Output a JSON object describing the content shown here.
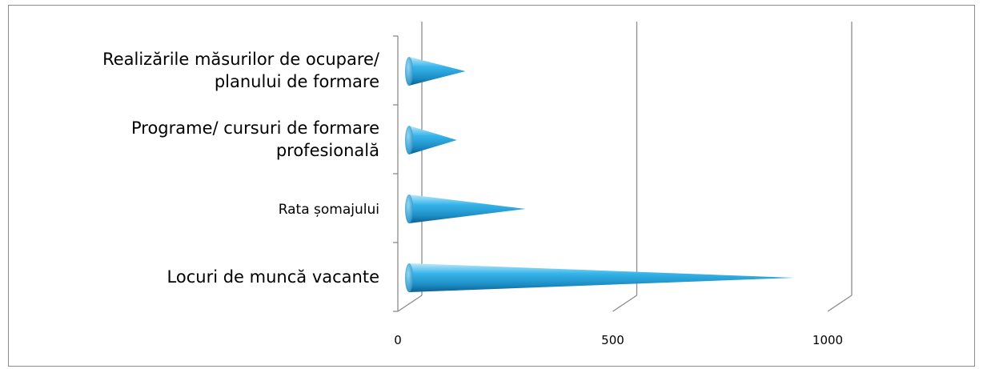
{
  "chart_data": {
    "type": "bar",
    "orientation": "horizontal",
    "style": "3d-cone",
    "categories": [
      "Realizările măsurilor de ocupare/ planului de formare",
      "Programe/ cursuri de formare profesională",
      "Rata șomajului",
      "Locuri de muncă vacante"
    ],
    "values": [
      135,
      115,
      275,
      900
    ],
    "xlim": [
      0,
      1000
    ],
    "xticks": [
      "0",
      "500",
      "1000"
    ],
    "grid": true,
    "legend": "none",
    "bar_color": "#29a8e0"
  }
}
